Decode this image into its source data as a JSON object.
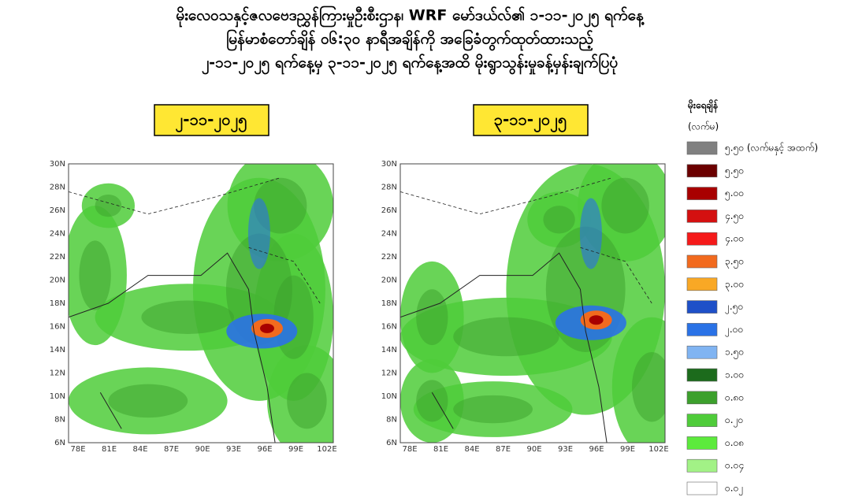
{
  "title_lines": [
    "မိုးလေဝသနှင့်ဇလဗေဒညွှန်ကြားမှုဦးစီးဌာန၊ WRF မော်ဒယ်လ်၏ ၁-၁၁-၂၀၂၅ ရက်နေ့",
    "မြန်မာစံတော်ချိန် ၀၆:၃၀ နာရီအချိန်ကို အခြေခံတွက်ထုတ်ထားသည့်",
    "၂-၁၁-၂၀၂၅ ရက်နေ့မှ ၃-၁၁-၂၀၂၅ ရက်နေ့အထိ မိုးရွာသွန်းမှုခန့်မှန်းချက်ပြပုံ"
  ],
  "lat_labels": [
    "30N",
    "28N",
    "26N",
    "24N",
    "22N",
    "20N",
    "18N",
    "16N",
    "14N",
    "12N",
    "10N",
    "8N",
    "6N"
  ],
  "lon_labels": [
    "78E",
    "81E",
    "84E",
    "87E",
    "90E",
    "93E",
    "96E",
    "99E",
    "102E"
  ],
  "panels": [
    {
      "date": "၂-၁၁-၂၀၂၅"
    },
    {
      "date": "၃-၁၁-၂၀၂၅"
    }
  ],
  "legend": {
    "title": "မိုးရေချိန်",
    "unit": "(လက်မ)",
    "items": [
      {
        "label": "၅.၅၀ (လက်မနှင့် အထက်)",
        "color": "#808080"
      },
      {
        "label": "၅.၅၀",
        "color": "#6b0000"
      },
      {
        "label": "၅.၀၀",
        "color": "#a80000"
      },
      {
        "label": "၄.၅၀",
        "color": "#d41010"
      },
      {
        "label": "၄.၀၀",
        "color": "#f51a1a"
      },
      {
        "label": "၃.၅၀",
        "color": "#f26a1e"
      },
      {
        "label": "၃.၀၀",
        "color": "#f9a825"
      },
      {
        "label": "၂.၅၀",
        "color": "#1e50c8"
      },
      {
        "label": "၂.၀၀",
        "color": "#2a72e6"
      },
      {
        "label": "၁.၅၀",
        "color": "#80b4f2"
      },
      {
        "label": "၁.၀၀",
        "color": "#1c6b1c"
      },
      {
        "label": "၀.၈၀",
        "color": "#3ca02c"
      },
      {
        "label": "၀.၂၀",
        "color": "#4fcc3a"
      },
      {
        "label": "၀.၀၈",
        "color": "#5cea3c"
      },
      {
        "label": "၀.၀၄",
        "color": "#a2f286"
      },
      {
        "label": "၀.၀၂",
        "color": "#ffffff"
      }
    ]
  }
}
